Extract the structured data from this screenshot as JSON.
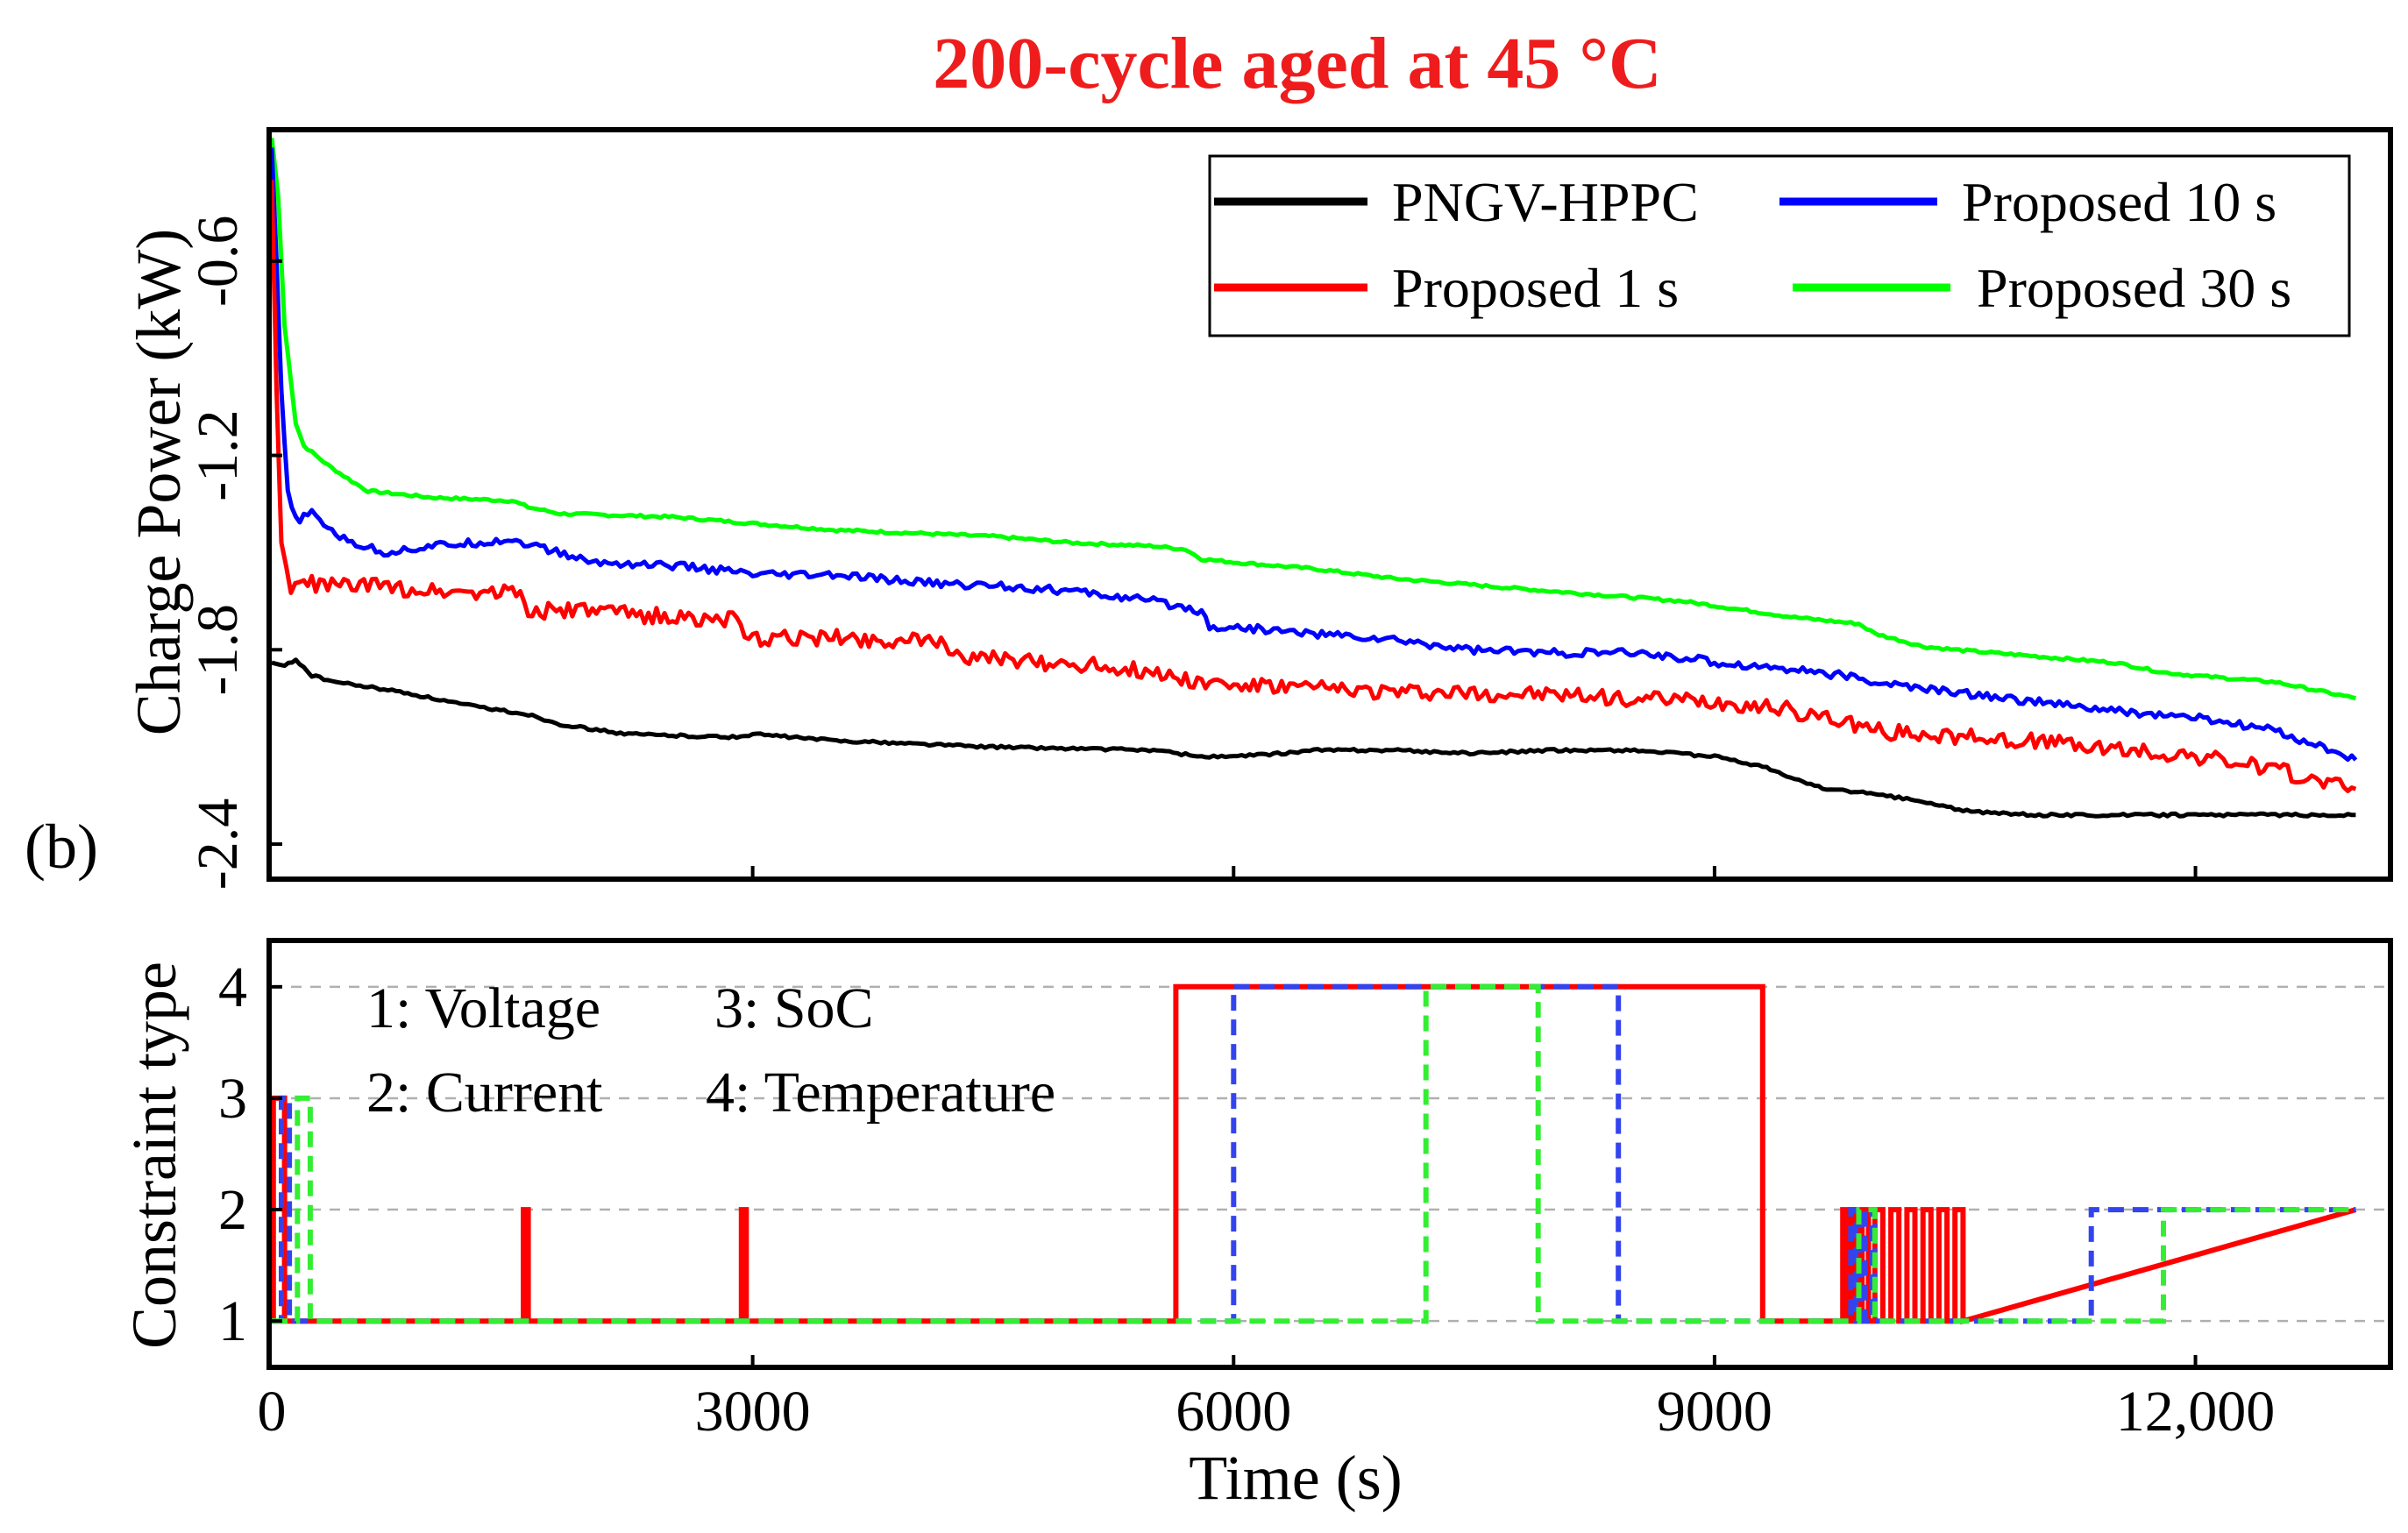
{
  "figure": {
    "title": "200-cycle aged at 45 °C",
    "title_color": "#ee1c1c",
    "panel_label": "(b)"
  },
  "chart_data": [
    {
      "type": "line",
      "name": "charge-power",
      "xlim": [
        0,
        13200
      ],
      "ylim": [
        -2.5,
        -0.2
      ],
      "ylabel": "Charge Power (kW)",
      "xlabel": "",
      "xticks": [
        3000,
        6000,
        9000,
        12000
      ],
      "yticks": [
        -2.4,
        -1.8,
        -1.2,
        -0.6
      ],
      "ytick_labels": [
        "-2.4",
        "-1.8",
        "-1.2",
        "-0.6"
      ],
      "legend_position": "top-right",
      "series": [
        {
          "key": "black",
          "name": "PNGV-HPPC",
          "color": "#000000",
          "noise": 0.004,
          "x": [
            0,
            80,
            150,
            250,
            400,
            800,
            1200,
            1600,
            1800,
            2200,
            2900,
            3000,
            3500,
            4500,
            5500,
            5800,
            6000,
            6300,
            6500,
            7000,
            7500,
            8000,
            8500,
            9000,
            9300,
            9500,
            9700,
            9900,
            10200,
            10600,
            11000,
            11500,
            12000,
            12500,
            12600,
            13000
          ],
          "y": [
            -1.84,
            -1.85,
            -1.83,
            -1.88,
            -1.9,
            -1.93,
            -1.97,
            -2.0,
            -2.03,
            -2.06,
            -2.07,
            -2.06,
            -2.08,
            -2.1,
            -2.11,
            -2.13,
            -2.13,
            -2.12,
            -2.11,
            -2.11,
            -2.12,
            -2.11,
            -2.11,
            -2.13,
            -2.16,
            -2.2,
            -2.23,
            -2.24,
            -2.26,
            -2.3,
            -2.31,
            -2.31,
            -2.31,
            -2.31,
            -2.31,
            -2.31
          ]
        },
        {
          "key": "red",
          "name": "Proposed 1 s",
          "color": "#ff0000",
          "noise": 0.025,
          "x": [
            0,
            30,
            60,
            120,
            200,
            300,
            500,
            800,
            1200,
            1550,
            1600,
            2000,
            2500,
            2900,
            2950,
            3500,
            4200,
            4350,
            4500,
            5200,
            5500,
            5800,
            6000,
            6500,
            7000,
            8000,
            9000,
            9400,
            9800,
            10000,
            10300,
            11000,
            11500,
            12000,
            12500,
            13000
          ],
          "y": [
            -0.35,
            -1.0,
            -1.47,
            -1.62,
            -1.59,
            -1.6,
            -1.6,
            -1.61,
            -1.62,
            -1.62,
            -1.68,
            -1.68,
            -1.7,
            -1.71,
            -1.77,
            -1.76,
            -1.78,
            -1.83,
            -1.83,
            -1.85,
            -1.87,
            -1.9,
            -1.91,
            -1.92,
            -1.93,
            -1.94,
            -1.96,
            -1.98,
            -2.02,
            -2.05,
            -2.06,
            -2.08,
            -2.11,
            -2.13,
            -2.17,
            -2.23
          ]
        },
        {
          "key": "blue",
          "name": "Proposed 10 s",
          "color": "#0000ff",
          "noise": 0.012,
          "x": [
            0,
            30,
            60,
            100,
            150,
            250,
            450,
            700,
            1000,
            1500,
            2000,
            2500,
            2900,
            3000,
            3500,
            4000,
            4300,
            4500,
            5000,
            5500,
            5800,
            5850,
            6000,
            6500,
            7000,
            7500,
            8000,
            8500,
            8900,
            9000,
            9500,
            9800,
            10000,
            10300,
            11000,
            11500,
            12000,
            12500,
            13000
          ],
          "y": [
            -0.25,
            -0.6,
            -1.0,
            -1.32,
            -1.4,
            -1.38,
            -1.46,
            -1.5,
            -1.48,
            -1.46,
            -1.53,
            -1.54,
            -1.56,
            -1.57,
            -1.57,
            -1.59,
            -1.6,
            -1.6,
            -1.62,
            -1.65,
            -1.68,
            -1.73,
            -1.73,
            -1.75,
            -1.77,
            -1.8,
            -1.81,
            -1.81,
            -1.83,
            -1.84,
            -1.86,
            -1.88,
            -1.9,
            -1.92,
            -1.96,
            -1.99,
            -2.01,
            -2.05,
            -2.14
          ]
        },
        {
          "key": "green",
          "name": "Proposed 30 s",
          "color": "#00ff00",
          "noise": 0.004,
          "x": [
            0,
            40,
            80,
            150,
            200,
            350,
            500,
            600,
            800,
            1000,
            1500,
            1600,
            1800,
            2500,
            3000,
            3500,
            4500,
            5000,
            5500,
            5700,
            5800,
            6000,
            6500,
            7000,
            7500,
            8000,
            8800,
            9500,
            9900,
            10000,
            10300,
            10500,
            11000,
            11500,
            11800,
            12000,
            12500,
            13000
          ],
          "y": [
            -0.22,
            -0.4,
            -0.8,
            -1.1,
            -1.17,
            -1.23,
            -1.28,
            -1.31,
            -1.32,
            -1.33,
            -1.34,
            -1.36,
            -1.38,
            -1.39,
            -1.41,
            -1.43,
            -1.45,
            -1.47,
            -1.48,
            -1.49,
            -1.52,
            -1.53,
            -1.55,
            -1.58,
            -1.6,
            -1.62,
            -1.65,
            -1.7,
            -1.72,
            -1.75,
            -1.79,
            -1.8,
            -1.82,
            -1.84,
            -1.87,
            -1.88,
            -1.9,
            -1.95
          ]
        }
      ]
    },
    {
      "type": "line",
      "name": "constraint-type",
      "xlim": [
        0,
        13200
      ],
      "ylim": [
        0.6,
        4.4
      ],
      "ylabel": "Constraint type",
      "xlabel": "Time (s)",
      "xticks": [
        0,
        3000,
        6000,
        9000,
        12000
      ],
      "xtick_labels": [
        "0",
        "3000",
        "6000",
        "9000",
        "12,000"
      ],
      "yticks": [
        1,
        2,
        3,
        4
      ],
      "ytick_labels": [
        "1",
        "2",
        "3",
        "4"
      ],
      "grid": true,
      "annotations": [
        "1: Voltage",
        "3: SoC",
        "2: Current",
        "4: Temperature"
      ],
      "series": [
        {
          "key": "red",
          "name": "Proposed 1 s",
          "color": "#ff0000",
          "dash": false,
          "x": [
            0,
            10,
            10,
            80,
            80,
            110,
            110,
            1570,
            1570,
            1600,
            1600,
            2930,
            2930,
            2960,
            2960,
            5640,
            5640,
            9300,
            9300,
            9800,
            9800,
            9830,
            9830,
            9860,
            9860,
            9890,
            9890,
            9920,
            9920,
            9960,
            9960,
            10000,
            10000,
            10050,
            10050,
            10100,
            10100,
            10150,
            10150,
            10200,
            10200,
            10250,
            10250,
            10300,
            10300,
            10350,
            10350,
            10400,
            10400,
            10450,
            10450,
            10500,
            10500,
            10550,
            10550,
            13000
          ],
          "y": [
            1,
            1,
            3,
            3,
            1,
            1,
            1,
            1,
            2,
            2,
            1,
            1,
            2,
            2,
            1,
            1,
            4,
            4,
            1,
            1,
            2,
            2,
            1,
            1,
            2,
            2,
            1,
            1,
            2,
            2,
            1,
            1,
            2,
            2,
            1,
            1,
            2,
            2,
            1,
            1,
            2,
            2,
            1,
            1,
            2,
            2,
            1,
            1,
            2,
            2,
            1,
            1,
            2,
            2,
            1,
            2
          ]
        },
        {
          "key": "blue",
          "name": "Proposed 10 s",
          "color": "#3344ee",
          "dash": true,
          "x": [
            0,
            60,
            60,
            110,
            110,
            160,
            160,
            6000,
            6000,
            8400,
            8400,
            9850,
            9850,
            9880,
            9880,
            9910,
            9910,
            9940,
            9940,
            9980,
            9980,
            10000,
            10000,
            11350,
            11350,
            13000
          ],
          "y": [
            1,
            1,
            3,
            3,
            1,
            1,
            1,
            1,
            4,
            4,
            1,
            1,
            2,
            2,
            1,
            1,
            2,
            2,
            1,
            1,
            2,
            2,
            1,
            1,
            2,
            2
          ]
        },
        {
          "key": "green",
          "name": "Proposed 30 s",
          "color": "#33ee33",
          "dash": true,
          "x": [
            0,
            160,
            160,
            240,
            240,
            7200,
            7200,
            7900,
            7900,
            9900,
            9900,
            10000,
            10000,
            11800,
            11800,
            13000
          ],
          "y": [
            1,
            1,
            3,
            3,
            1,
            1,
            4,
            4,
            1,
            1,
            2,
            2,
            1,
            1,
            2,
            2
          ]
        }
      ]
    }
  ]
}
